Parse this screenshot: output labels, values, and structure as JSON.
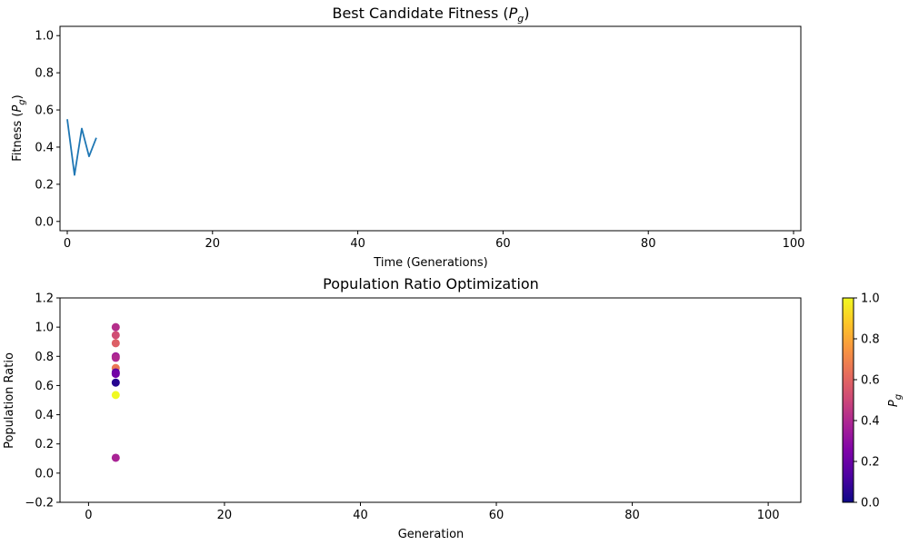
{
  "chart_data": [
    {
      "type": "line",
      "title_main": "Best Candidate Fitness (",
      "title_var": "P",
      "title_sub": "g",
      "title_close": ")",
      "xlabel": "Time (Generations)",
      "ylabel_main": "Fitness (",
      "ylabel_var": "P",
      "ylabel_sub": "g",
      "ylabel_close": ")",
      "xlim": [
        -1,
        101
      ],
      "ylim": [
        -0.05,
        1.05
      ],
      "x_ticks": [
        0,
        20,
        40,
        60,
        80,
        100
      ],
      "y_ticks": [
        "0.0",
        "0.2",
        "0.4",
        "0.6",
        "0.8",
        "1.0"
      ],
      "series": [
        {
          "color": "#1f77b4",
          "x": [
            0,
            1,
            2,
            3,
            4
          ],
          "y": [
            0.55,
            0.25,
            0.5,
            0.35,
            0.45
          ]
        }
      ]
    },
    {
      "type": "scatter",
      "title": "Population Ratio Optimization",
      "xlabel": "Generation",
      "ylabel": "Population Ratio",
      "xlim": [
        -4.2,
        104.8
      ],
      "ylim": [
        -0.2,
        1.2
      ],
      "x_ticks": [
        0,
        20,
        40,
        60,
        80,
        100
      ],
      "y_ticks": [
        "−0.2",
        "0.0",
        "0.2",
        "0.4",
        "0.6",
        "0.8",
        "1.0",
        "1.2"
      ],
      "colormap": "plasma",
      "points": [
        {
          "x": 4,
          "y": 1.0,
          "c": 0.42
        },
        {
          "x": 4,
          "y": 0.945,
          "c": 0.52
        },
        {
          "x": 4,
          "y": 0.89,
          "c": 0.58
        },
        {
          "x": 4,
          "y": 0.8,
          "c": 0.35
        },
        {
          "x": 4,
          "y": 0.79,
          "c": 0.4
        },
        {
          "x": 4,
          "y": 0.72,
          "c": 0.66
        },
        {
          "x": 4,
          "y": 0.69,
          "c": 0.15
        },
        {
          "x": 4,
          "y": 0.68,
          "c": 0.22
        },
        {
          "x": 4,
          "y": 0.62,
          "c": 0.05
        },
        {
          "x": 4,
          "y": 0.535,
          "c": 1.0
        },
        {
          "x": 4,
          "y": 0.105,
          "c": 0.38
        }
      ],
      "colorbar": {
        "label_var": "P",
        "label_sub": "g",
        "range": [
          0,
          1
        ],
        "ticks": [
          "0.0",
          "0.2",
          "0.4",
          "0.6",
          "0.8",
          "1.0"
        ]
      }
    }
  ]
}
